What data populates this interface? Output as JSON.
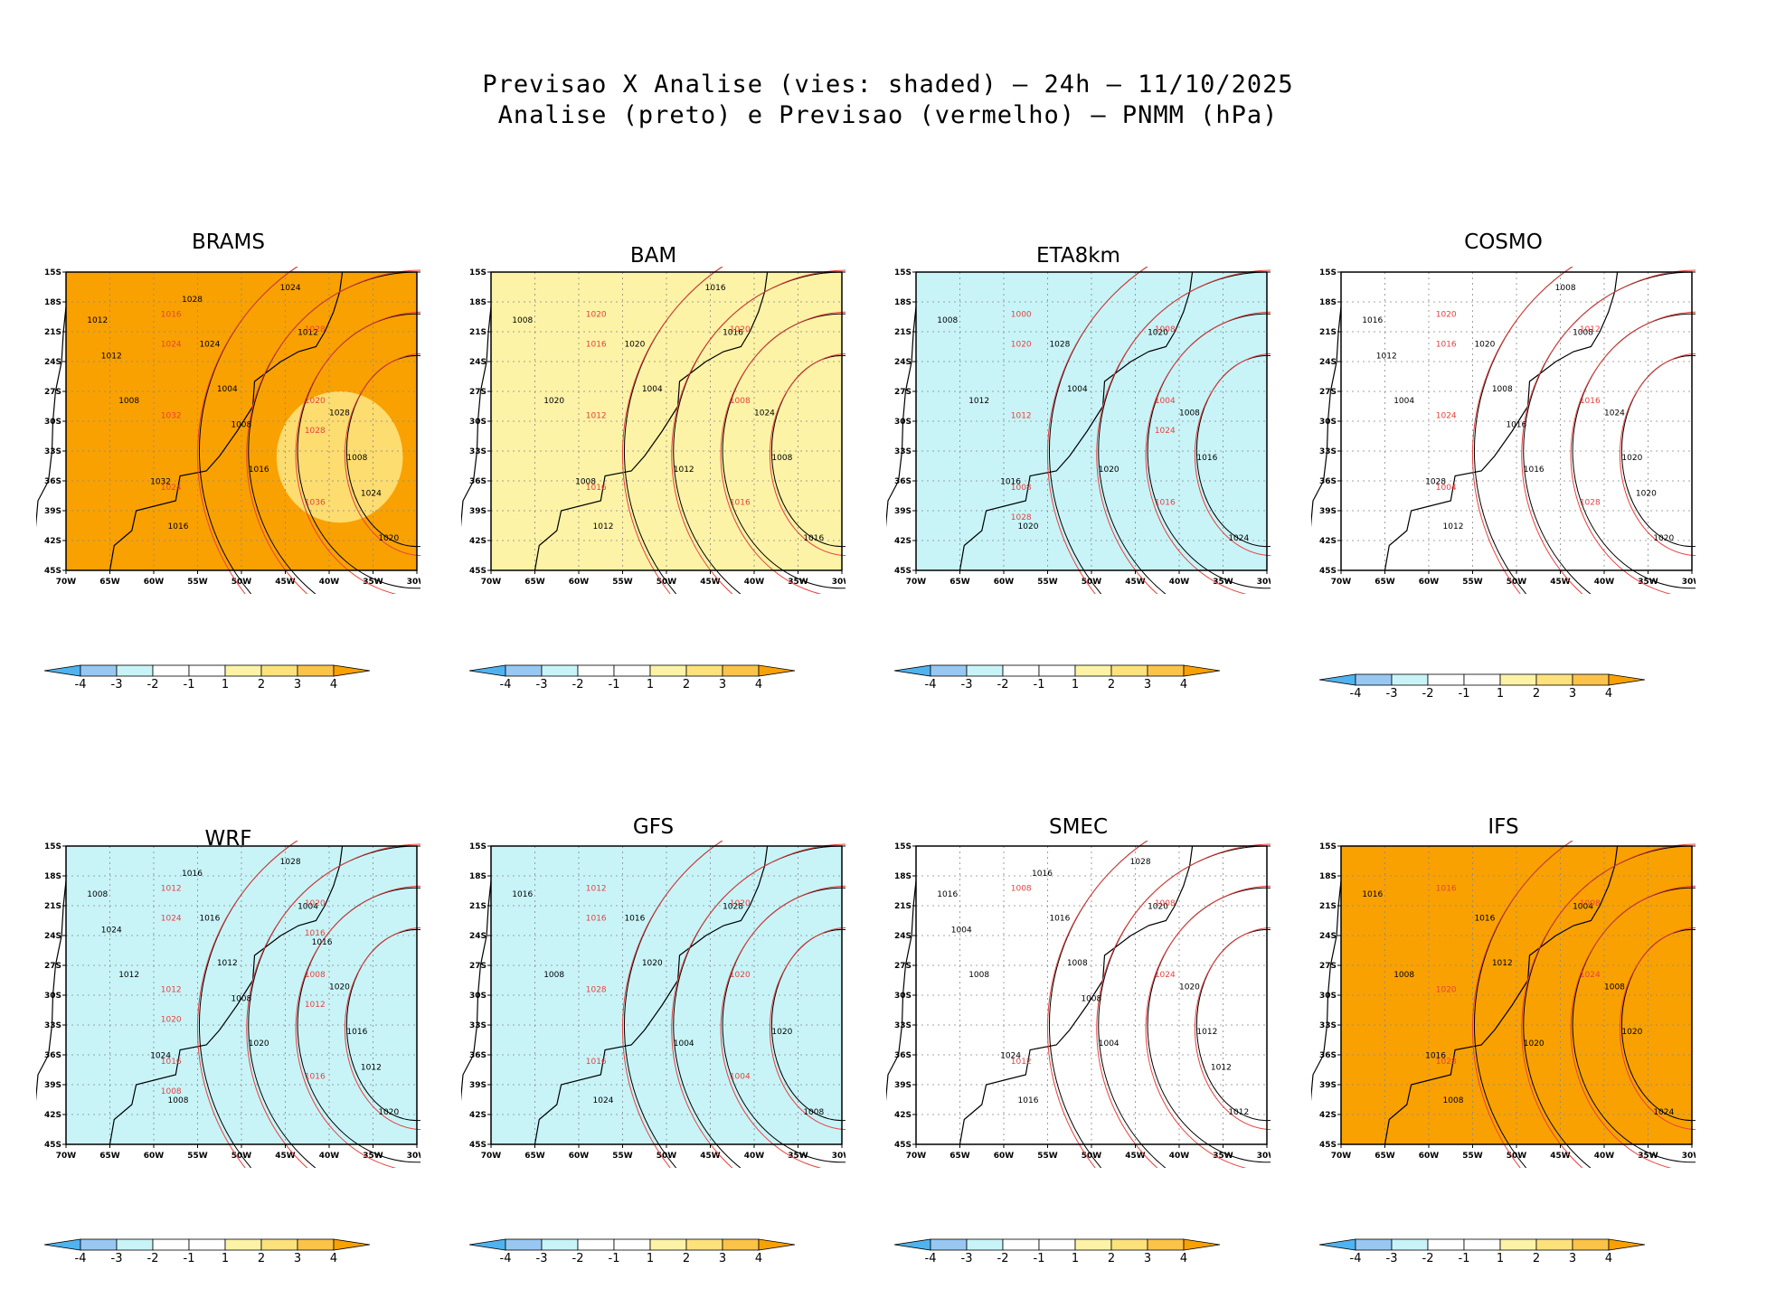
{
  "figure": {
    "title_line1": "Previsao X Analise (vies: shaded) – 24h – 11/10/2025",
    "title_line2": "Analise (preto) e Previsao (vermelho) – PNMM (hPa)"
  },
  "colors": {
    "bias_levels": [
      "#4fb3ef",
      "#98c8f2",
      "#c8f4f8",
      "#ffffff",
      "#ffffff",
      "#fdf3a6",
      "#fde27c",
      "#fcc349",
      "#f9a100"
    ],
    "analysis_contour": "#000000",
    "forecast_contour": "#e8423f",
    "grid": "#888888"
  },
  "chart_data": [
    {
      "type": "heatmap",
      "title": "BRAMS",
      "dominant_bias": "4",
      "secondary_bias": "3",
      "lat_ticks": [
        "15S",
        "18S",
        "21S",
        "24S",
        "27S",
        "30S",
        "33S",
        "36S",
        "39S",
        "42S",
        "45S"
      ],
      "lon_ticks": [
        "70W",
        "65W",
        "60W",
        "55W",
        "50W",
        "45W",
        "40W",
        "35W",
        "30W"
      ],
      "xlim": [
        -70,
        -30
      ],
      "ylim": [
        -45,
        -15
      ],
      "colorbar_ticks": [
        "-4",
        "-3",
        "-2",
        "-1",
        "1",
        "2",
        "3",
        "4"
      ],
      "black_contour_labels": [
        "1012",
        "1004",
        "1008",
        "1016",
        "1012",
        "1008",
        "1016",
        "1020",
        "1024",
        "1028",
        "1032",
        "1024",
        "1012",
        "1008",
        "1024",
        "1028"
      ],
      "red_contour_labels": [
        "1016",
        "1020",
        "1024",
        "1028",
        "1032",
        "1036",
        "1024",
        "1028"
      ]
    },
    {
      "type": "heatmap",
      "title": "BAM",
      "dominant_bias": "2",
      "lat_ticks": [
        "15S",
        "18S",
        "21S",
        "24S",
        "27S",
        "30S",
        "33S",
        "36S",
        "39S",
        "42S",
        "45S"
      ],
      "lon_ticks": [
        "70W",
        "65W",
        "60W",
        "55W",
        "50W",
        "45W",
        "40W",
        "35W",
        "30W"
      ],
      "xlim": [
        -70,
        -30
      ],
      "ylim": [
        -45,
        -15
      ],
      "colorbar_ticks": [
        "-4",
        "-3",
        "-2",
        "-1",
        "1",
        "2",
        "3",
        "4"
      ],
      "black_contour_labels": [
        "1008",
        "1004",
        "1008",
        "1012",
        "1016",
        "1020",
        "1012",
        "1016",
        "1020",
        "1024",
        "1008",
        "1016"
      ],
      "red_contour_labels": [
        "1020",
        "1008",
        "1016",
        "1020",
        "1012",
        "1016",
        "1016"
      ]
    },
    {
      "type": "heatmap",
      "title": "ETA8km",
      "dominant_bias": "-2",
      "lat_ticks": [
        "15S",
        "18S",
        "21S",
        "24S",
        "27S",
        "30S",
        "33S",
        "36S",
        "39S",
        "42S",
        "45S"
      ],
      "lon_ticks": [
        "70W",
        "65W",
        "60W",
        "55W",
        "50W",
        "45W",
        "40W",
        "35W",
        "30W"
      ],
      "xlim": [
        -70,
        -30
      ],
      "ylim": [
        -45,
        -15
      ],
      "colorbar_ticks": [
        "-4",
        "-3",
        "-2",
        "-1",
        "1",
        "2",
        "3",
        "4"
      ],
      "black_contour_labels": [
        "1008",
        "1004",
        "1016",
        "1020",
        "1020",
        "1012",
        "1020",
        "1024",
        "1028",
        "1008",
        "1016"
      ],
      "red_contour_labels": [
        "1000",
        "1004",
        "1008",
        "1008",
        "1012",
        "1016",
        "1020",
        "1024",
        "1028"
      ]
    },
    {
      "type": "heatmap",
      "title": "COSMO",
      "dominant_bias": "1",
      "lat_ticks": [
        "15S",
        "18S",
        "21S",
        "24S",
        "27S",
        "30S",
        "33S",
        "36S",
        "39S",
        "42S",
        "45S"
      ],
      "lon_ticks": [
        "70W",
        "65W",
        "60W",
        "55W",
        "50W",
        "45W",
        "40W",
        "35W",
        "30W"
      ],
      "xlim": [
        -70,
        -30
      ],
      "ylim": [
        -45,
        -15
      ],
      "colorbar_ticks": [
        "-4",
        "-3",
        "-2",
        "-1",
        "1",
        "2",
        "3",
        "4"
      ],
      "black_contour_labels": [
        "1016",
        "1008",
        "1020",
        "1012",
        "1008",
        "1004",
        "1016",
        "1020",
        "1020",
        "1024",
        "1028",
        "1008",
        "1012",
        "1016",
        "1020"
      ],
      "red_contour_labels": [
        "1020",
        "1016",
        "1004",
        "1012",
        "1024",
        "1028",
        "1016"
      ]
    },
    {
      "type": "heatmap",
      "title": "WRF",
      "dominant_bias": "-2",
      "lat_ticks": [
        "15S",
        "18S",
        "21S",
        "24S",
        "27S",
        "30S",
        "33S",
        "36S",
        "39S",
        "42S",
        "45S"
      ],
      "lon_ticks": [
        "70W",
        "65W",
        "60W",
        "55W",
        "50W",
        "45W",
        "40W",
        "35W",
        "30W"
      ],
      "xlim": [
        -70,
        -30
      ],
      "ylim": [
        -45,
        -15
      ],
      "colorbar_ticks": [
        "-4",
        "-3",
        "-2",
        "-1",
        "1",
        "2",
        "3",
        "4"
      ],
      "black_contour_labels": [
        "1008",
        "1012",
        "1016",
        "1008",
        "1004",
        "1012",
        "1020",
        "1020",
        "1016",
        "1020",
        "1024",
        "1028",
        "1024",
        "1008",
        "1012",
        "1016",
        "1016"
      ],
      "red_contour_labels": [
        "1012",
        "1008",
        "1016",
        "1020",
        "1012",
        "1016",
        "1024",
        "1012",
        "1008",
        "1016",
        "1020"
      ]
    },
    {
      "type": "heatmap",
      "title": "GFS",
      "dominant_bias": "-2",
      "lat_ticks": [
        "15S",
        "18S",
        "21S",
        "24S",
        "27S",
        "30S",
        "33S",
        "36S",
        "39S",
        "42S",
        "45S"
      ],
      "lon_ticks": [
        "70W",
        "65W",
        "60W",
        "55W",
        "50W",
        "45W",
        "40W",
        "35W",
        "30W"
      ],
      "xlim": [
        -70,
        -30
      ],
      "ylim": [
        -45,
        -15
      ],
      "colorbar_ticks": [
        "-4",
        "-3",
        "-2",
        "-1",
        "1",
        "2",
        "3",
        "4"
      ],
      "black_contour_labels": [
        "1016",
        "1020",
        "1020",
        "1024",
        "1028",
        "1008",
        "1004",
        "1008",
        "1016"
      ],
      "red_contour_labels": [
        "1012",
        "1020",
        "1016",
        "1020",
        "1028",
        "1004",
        "1016"
      ]
    },
    {
      "type": "heatmap",
      "title": "SMEC",
      "dominant_bias": "-1",
      "lat_ticks": [
        "15S",
        "18S",
        "21S",
        "24S",
        "27S",
        "30S",
        "33S",
        "36S",
        "39S",
        "42S",
        "45S"
      ],
      "lon_ticks": [
        "70W",
        "65W",
        "60W",
        "55W",
        "50W",
        "45W",
        "40W",
        "35W",
        "30W"
      ],
      "xlim": [
        -70,
        -30
      ],
      "ylim": [
        -45,
        -15
      ],
      "colorbar_ticks": [
        "-4",
        "-3",
        "-2",
        "-1",
        "1",
        "2",
        "3",
        "4"
      ],
      "black_contour_labels": [
        "1016",
        "1008",
        "1012",
        "1016",
        "1020",
        "1008",
        "1004",
        "1012",
        "1016",
        "1020",
        "1024",
        "1028",
        "1004",
        "1008",
        "1012",
        "1016"
      ],
      "red_contour_labels": [
        "1008",
        "1024",
        "1012",
        "1008"
      ]
    },
    {
      "type": "heatmap",
      "title": "IFS",
      "dominant_bias": "4",
      "lat_ticks": [
        "15S",
        "18S",
        "21S",
        "24S",
        "27S",
        "30S",
        "33S",
        "36S",
        "39S",
        "42S",
        "45S"
      ],
      "lon_ticks": [
        "70W",
        "65W",
        "60W",
        "55W",
        "50W",
        "45W",
        "40W",
        "35W",
        "30W"
      ],
      "xlim": [
        -70,
        -30
      ],
      "ylim": [
        -45,
        -15
      ],
      "colorbar_ticks": [
        "-4",
        "-3",
        "-2",
        "-1",
        "1",
        "2",
        "3",
        "4"
      ],
      "black_contour_labels": [
        "1016",
        "1012",
        "1020",
        "1008",
        "1004",
        "1008",
        "1020",
        "1024",
        "1016",
        "1008",
        "1016"
      ],
      "red_contour_labels": [
        "1016",
        "1024",
        "1028",
        "1008",
        "1020"
      ]
    }
  ]
}
